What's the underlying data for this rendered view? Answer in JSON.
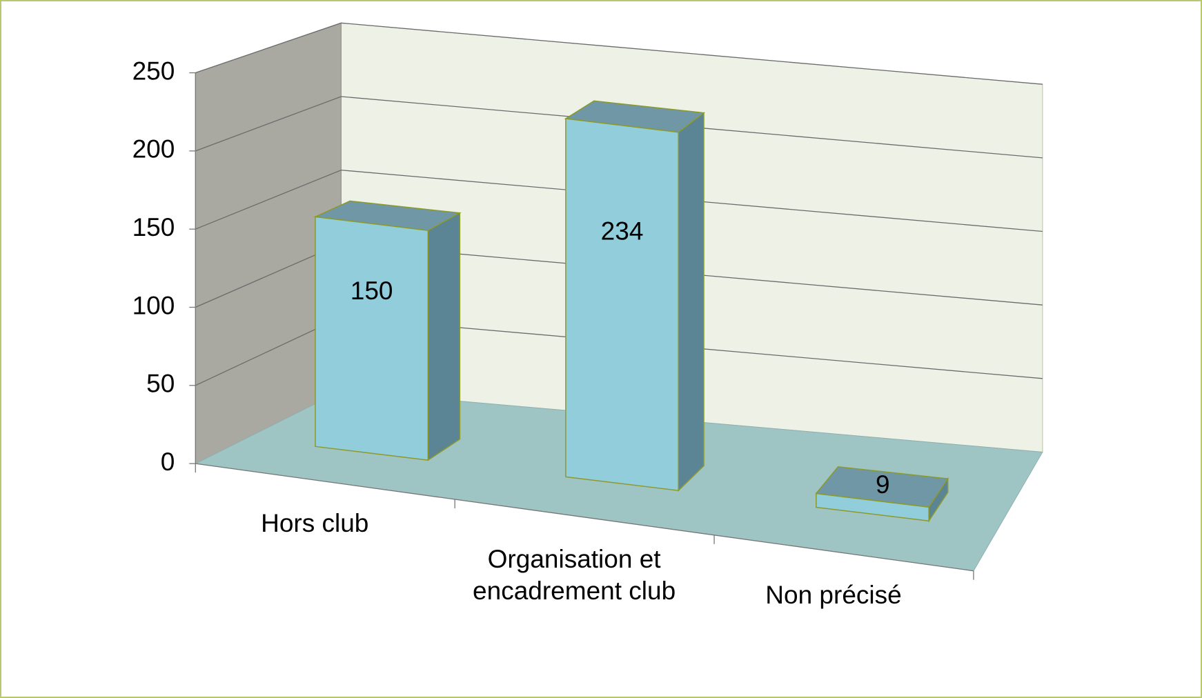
{
  "chart_data": {
    "type": "bar3d",
    "categories": [
      "Hors club",
      "Organisation et encadrement club",
      "Non précisé"
    ],
    "values": [
      150,
      234,
      9
    ],
    "color": "#92cddc",
    "ylim": [
      0,
      250
    ],
    "yticks": [
      0,
      50,
      100,
      150,
      200,
      250
    ],
    "grid": true
  }
}
